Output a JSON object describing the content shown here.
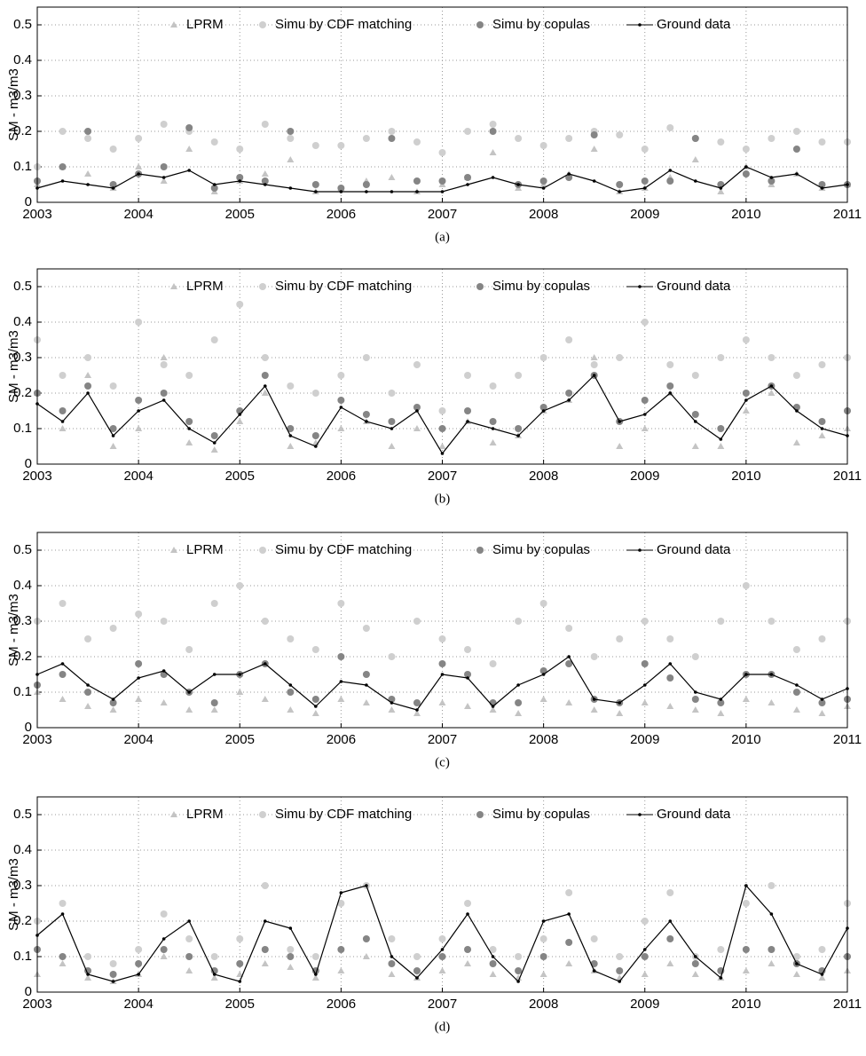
{
  "chart_data": [
    {
      "type": "scatter",
      "caption": "(a)",
      "y_label": "SM - m3/m3",
      "x": [
        2003,
        2003.25,
        2003.5,
        2003.75,
        2004,
        2004.25,
        2004.5,
        2004.75,
        2005,
        2005.25,
        2005.5,
        2005.75,
        2006,
        2006.25,
        2006.5,
        2006.75,
        2007,
        2007.25,
        2007.5,
        2007.75,
        2008,
        2008.25,
        2008.5,
        2008.75,
        2009,
        2009.25,
        2009.5,
        2009.75,
        2010,
        2010.25,
        2010.5,
        2010.75,
        2011
      ],
      "xlim": [
        2003,
        2011
      ],
      "xticks": [
        2003,
        2004,
        2005,
        2006,
        2007,
        2008,
        2009,
        2010,
        2011
      ],
      "ylim": [
        0,
        0.55
      ],
      "yticks": [
        0,
        0.1,
        0.2,
        0.3,
        0.4,
        0.5
      ],
      "grid": true,
      "series": [
        {
          "name": "LPRM",
          "color": "#c4c4c4",
          "marker": "triangle",
          "values": [
            0.05,
            0.1,
            0.08,
            0.04,
            0.1,
            0.06,
            0.15,
            0.03,
            0.06,
            0.08,
            0.12,
            0.03,
            0.04,
            0.06,
            0.07,
            0.03,
            0.05,
            0.07,
            0.14,
            0.04,
            0.05,
            0.08,
            0.15,
            0.03,
            0.04,
            0.07,
            0.12,
            0.03,
            0.1,
            0.05,
            0.08,
            0.04,
            0.05
          ]
        },
        {
          "name": "Simu by CDF matching",
          "color": "#cfcfcf",
          "marker": "circle",
          "values": [
            0.1,
            0.2,
            0.18,
            0.15,
            0.18,
            0.22,
            0.2,
            0.17,
            0.15,
            0.22,
            0.18,
            0.16,
            0.16,
            0.18,
            0.2,
            0.17,
            0.14,
            0.2,
            0.22,
            0.18,
            0.16,
            0.18,
            0.2,
            0.19,
            0.15,
            0.21,
            0.18,
            0.17,
            0.15,
            0.18,
            0.2,
            0.17,
            0.17
          ]
        },
        {
          "name": "Simu by copulas",
          "color": "#858585",
          "marker": "circle",
          "values": [
            0.06,
            0.1,
            0.2,
            0.05,
            0.08,
            0.1,
            0.21,
            0.04,
            0.07,
            0.06,
            0.2,
            0.05,
            0.04,
            0.05,
            0.18,
            0.06,
            0.06,
            0.07,
            0.2,
            0.05,
            0.06,
            0.07,
            0.19,
            0.05,
            0.06,
            0.06,
            0.18,
            0.05,
            0.08,
            0.06,
            0.15,
            0.05,
            0.05
          ]
        },
        {
          "name": "Ground data",
          "color": "#000000",
          "marker": "line",
          "values": [
            0.04,
            0.06,
            0.05,
            0.04,
            0.08,
            0.07,
            0.09,
            0.05,
            0.06,
            0.05,
            0.04,
            0.03,
            0.03,
            0.03,
            0.03,
            0.03,
            0.03,
            0.05,
            0.07,
            0.05,
            0.04,
            0.08,
            0.06,
            0.03,
            0.04,
            0.09,
            0.06,
            0.04,
            0.1,
            0.07,
            0.08,
            0.04,
            0.05
          ]
        }
      ]
    },
    {
      "type": "scatter",
      "caption": "(b)",
      "y_label": "SM - m3/m3",
      "x": [
        2003,
        2003.25,
        2003.5,
        2003.75,
        2004,
        2004.25,
        2004.5,
        2004.75,
        2005,
        2005.25,
        2005.5,
        2005.75,
        2006,
        2006.25,
        2006.5,
        2006.75,
        2007,
        2007.25,
        2007.5,
        2007.75,
        2008,
        2008.25,
        2008.5,
        2008.75,
        2009,
        2009.25,
        2009.5,
        2009.75,
        2010,
        2010.25,
        2010.5,
        2010.75,
        2011
      ],
      "xlim": [
        2003,
        2011
      ],
      "xticks": [
        2003,
        2004,
        2005,
        2006,
        2007,
        2008,
        2009,
        2010,
        2011
      ],
      "ylim": [
        0,
        0.55
      ],
      "yticks": [
        0,
        0.1,
        0.2,
        0.3,
        0.4,
        0.5
      ],
      "grid": true,
      "series": [
        {
          "name": "LPRM",
          "color": "#c4c4c4",
          "marker": "triangle",
          "values": [
            0.2,
            0.1,
            0.25,
            0.05,
            0.1,
            0.3,
            0.06,
            0.04,
            0.12,
            0.2,
            0.05,
            0.06,
            0.1,
            0.12,
            0.05,
            0.1,
            0.05,
            0.12,
            0.06,
            0.08,
            0.15,
            0.18,
            0.3,
            0.05,
            0.1,
            0.2,
            0.05,
            0.05,
            0.15,
            0.2,
            0.06,
            0.08,
            0.1
          ]
        },
        {
          "name": "Simu by CDF matching",
          "color": "#cfcfcf",
          "marker": "circle",
          "values": [
            0.35,
            0.25,
            0.3,
            0.22,
            0.4,
            0.28,
            0.25,
            0.35,
            0.45,
            0.3,
            0.22,
            0.2,
            0.25,
            0.3,
            0.2,
            0.28,
            0.15,
            0.25,
            0.22,
            0.25,
            0.3,
            0.35,
            0.28,
            0.3,
            0.4,
            0.28,
            0.25,
            0.3,
            0.35,
            0.3,
            0.25,
            0.28,
            0.3
          ]
        },
        {
          "name": "Simu by copulas",
          "color": "#858585",
          "marker": "circle",
          "values": [
            0.2,
            0.15,
            0.22,
            0.1,
            0.18,
            0.2,
            0.12,
            0.08,
            0.15,
            0.25,
            0.1,
            0.08,
            0.18,
            0.14,
            0.12,
            0.16,
            0.1,
            0.15,
            0.12,
            0.1,
            0.16,
            0.2,
            0.25,
            0.12,
            0.18,
            0.22,
            0.14,
            0.1,
            0.2,
            0.22,
            0.16,
            0.12,
            0.15
          ]
        },
        {
          "name": "Ground data",
          "color": "#000000",
          "marker": "line",
          "values": [
            0.17,
            0.12,
            0.2,
            0.08,
            0.15,
            0.18,
            0.1,
            0.06,
            0.14,
            0.22,
            0.08,
            0.05,
            0.16,
            0.12,
            0.1,
            0.15,
            0.03,
            0.12,
            0.1,
            0.08,
            0.15,
            0.18,
            0.25,
            0.12,
            0.14,
            0.2,
            0.12,
            0.07,
            0.18,
            0.22,
            0.15,
            0.1,
            0.08
          ]
        }
      ]
    },
    {
      "type": "scatter",
      "caption": "(c)",
      "y_label": "SM - m3/m3",
      "x": [
        2003,
        2003.25,
        2003.5,
        2003.75,
        2004,
        2004.25,
        2004.5,
        2004.75,
        2005,
        2005.25,
        2005.5,
        2005.75,
        2006,
        2006.25,
        2006.5,
        2006.75,
        2007,
        2007.25,
        2007.5,
        2007.75,
        2008,
        2008.25,
        2008.5,
        2008.75,
        2009,
        2009.25,
        2009.5,
        2009.75,
        2010,
        2010.25,
        2010.5,
        2010.75,
        2011
      ],
      "xlim": [
        2003,
        2011
      ],
      "xticks": [
        2003,
        2004,
        2005,
        2006,
        2007,
        2008,
        2009,
        2010,
        2011
      ],
      "ylim": [
        0,
        0.55
      ],
      "yticks": [
        0,
        0.1,
        0.2,
        0.3,
        0.4,
        0.5
      ],
      "grid": true,
      "series": [
        {
          "name": "LPRM",
          "color": "#c4c4c4",
          "marker": "triangle",
          "values": [
            0.1,
            0.08,
            0.06,
            0.05,
            0.08,
            0.07,
            0.05,
            0.05,
            0.1,
            0.08,
            0.05,
            0.04,
            0.08,
            0.07,
            0.05,
            0.04,
            0.07,
            0.06,
            0.05,
            0.04,
            0.08,
            0.07,
            0.05,
            0.04,
            0.07,
            0.06,
            0.05,
            0.04,
            0.08,
            0.07,
            0.05,
            0.04,
            0.06
          ]
        },
        {
          "name": "Simu by CDF matching",
          "color": "#cfcfcf",
          "marker": "circle",
          "values": [
            0.3,
            0.35,
            0.25,
            0.28,
            0.32,
            0.3,
            0.22,
            0.35,
            0.4,
            0.3,
            0.25,
            0.22,
            0.35,
            0.28,
            0.2,
            0.3,
            0.25,
            0.22,
            0.18,
            0.3,
            0.35,
            0.28,
            0.2,
            0.25,
            0.3,
            0.25,
            0.2,
            0.3,
            0.4,
            0.3,
            0.22,
            0.25,
            0.3
          ]
        },
        {
          "name": "Simu by copulas",
          "color": "#858585",
          "marker": "circle",
          "values": [
            0.12,
            0.15,
            0.1,
            0.07,
            0.18,
            0.15,
            0.1,
            0.07,
            0.15,
            0.18,
            0.1,
            0.08,
            0.2,
            0.15,
            0.08,
            0.07,
            0.18,
            0.15,
            0.07,
            0.07,
            0.16,
            0.18,
            0.08,
            0.07,
            0.18,
            0.14,
            0.08,
            0.07,
            0.15,
            0.15,
            0.1,
            0.07,
            0.08
          ]
        },
        {
          "name": "Ground data",
          "color": "#000000",
          "marker": "line",
          "values": [
            0.15,
            0.18,
            0.12,
            0.08,
            0.14,
            0.16,
            0.1,
            0.15,
            0.15,
            0.18,
            0.12,
            0.06,
            0.13,
            0.12,
            0.07,
            0.05,
            0.15,
            0.14,
            0.06,
            0.12,
            0.15,
            0.2,
            0.08,
            0.07,
            0.12,
            0.18,
            0.1,
            0.08,
            0.15,
            0.15,
            0.12,
            0.08,
            0.11
          ]
        }
      ]
    },
    {
      "type": "scatter",
      "caption": "(d)",
      "y_label": "SM - m3/m3",
      "x": [
        2003,
        2003.25,
        2003.5,
        2003.75,
        2004,
        2004.25,
        2004.5,
        2004.75,
        2005,
        2005.25,
        2005.5,
        2005.75,
        2006,
        2006.25,
        2006.5,
        2006.75,
        2007,
        2007.25,
        2007.5,
        2007.75,
        2008,
        2008.25,
        2008.5,
        2008.75,
        2009,
        2009.25,
        2009.5,
        2009.75,
        2010,
        2010.25,
        2010.5,
        2010.75,
        2011
      ],
      "xlim": [
        2003,
        2011
      ],
      "xticks": [
        2003,
        2004,
        2005,
        2006,
        2007,
        2008,
        2009,
        2010,
        2011
      ],
      "ylim": [
        0,
        0.55
      ],
      "yticks": [
        0,
        0.1,
        0.2,
        0.3,
        0.4,
        0.5
      ],
      "grid": true,
      "series": [
        {
          "name": "LPRM",
          "color": "#c4c4c4",
          "marker": "triangle",
          "values": [
            0.05,
            0.08,
            0.04,
            0.03,
            0.05,
            0.1,
            0.06,
            0.04,
            0.05,
            0.08,
            0.07,
            0.04,
            0.06,
            0.1,
            0.05,
            0.04,
            0.06,
            0.08,
            0.05,
            0.04,
            0.05,
            0.08,
            0.06,
            0.04,
            0.05,
            0.08,
            0.05,
            0.04,
            0.06,
            0.08,
            0.05,
            0.04,
            0.06
          ]
        },
        {
          "name": "Simu by CDF matching",
          "color": "#cfcfcf",
          "marker": "circle",
          "values": [
            0.2,
            0.25,
            0.1,
            0.08,
            0.12,
            0.22,
            0.15,
            0.1,
            0.15,
            0.3,
            0.12,
            0.1,
            0.25,
            0.3,
            0.15,
            0.1,
            0.15,
            0.25,
            0.12,
            0.1,
            0.15,
            0.28,
            0.15,
            0.1,
            0.2,
            0.28,
            0.1,
            0.12,
            0.25,
            0.3,
            0.1,
            0.12,
            0.25
          ]
        },
        {
          "name": "Simu by copulas",
          "color": "#858585",
          "marker": "circle",
          "values": [
            0.12,
            0.1,
            0.06,
            0.05,
            0.08,
            0.12,
            0.1,
            0.06,
            0.08,
            0.12,
            0.1,
            0.06,
            0.12,
            0.15,
            0.08,
            0.06,
            0.1,
            0.12,
            0.08,
            0.06,
            0.1,
            0.14,
            0.08,
            0.06,
            0.1,
            0.15,
            0.08,
            0.06,
            0.12,
            0.12,
            0.08,
            0.06,
            0.1
          ]
        },
        {
          "name": "Ground data",
          "color": "#000000",
          "marker": "line",
          "values": [
            0.16,
            0.22,
            0.05,
            0.03,
            0.05,
            0.15,
            0.2,
            0.05,
            0.03,
            0.2,
            0.18,
            0.05,
            0.28,
            0.3,
            0.1,
            0.04,
            0.12,
            0.22,
            0.1,
            0.03,
            0.2,
            0.22,
            0.06,
            0.03,
            0.12,
            0.2,
            0.1,
            0.04,
            0.3,
            0.22,
            0.08,
            0.05,
            0.18
          ]
        }
      ]
    }
  ]
}
